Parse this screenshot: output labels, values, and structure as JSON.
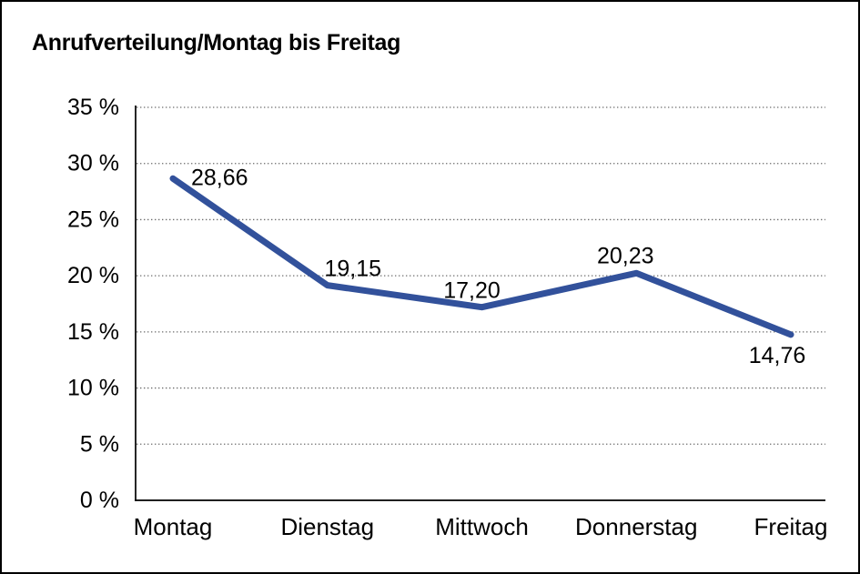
{
  "chart_data": {
    "type": "line",
    "title": "Anrufverteilung/Montag bis Freitag",
    "categories": [
      "Montag",
      "Dienstag",
      "Mittwoch",
      "Donnerstag",
      "Freitag"
    ],
    "values": [
      28.66,
      19.15,
      17.2,
      20.23,
      14.76
    ],
    "value_labels": [
      "28,66",
      "19,15",
      "17,20",
      "20,23",
      "14,76"
    ],
    "xlabel": "",
    "ylabel": "",
    "ylim": [
      0,
      35
    ],
    "y_tick_step": 5,
    "y_ticks": [
      "0 %",
      "5 %",
      "10 %",
      "15 %",
      "20 %",
      "25 %",
      "30 %",
      "35 %"
    ],
    "grid": "horizontal-dotted",
    "legend_position": "none",
    "line_color": "#32519B",
    "axis_color": "#000000",
    "gridline_color": "#6e6e6e",
    "text_color": "#000000",
    "background_color": "#ffffff"
  }
}
